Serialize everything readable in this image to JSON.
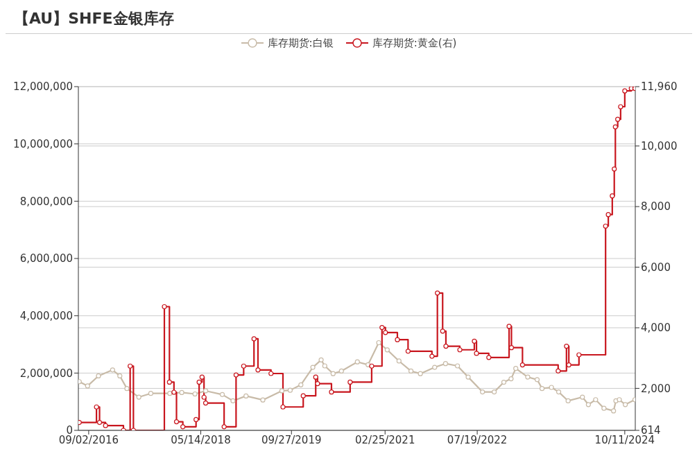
{
  "chart_data": {
    "type": "line",
    "title": "【AU】SHFE金银库存",
    "xlim": [
      "2016-07-07",
      "2024-12-08"
    ],
    "xticks": [
      {
        "value": "2016-09-02",
        "label": "09/02/2016"
      },
      {
        "value": "2018-05-14",
        "label": "05/14/2018"
      },
      {
        "value": "2019-09-27",
        "label": "09/27/2019"
      },
      {
        "value": "2021-02-25",
        "label": "02/25/2021"
      },
      {
        "value": "2022-07-19",
        "label": "07/19/2022"
      },
      {
        "value": "2024-10-11",
        "label": "10/11/2024"
      }
    ],
    "ylim": [
      0,
      12000000
    ],
    "yticks": [
      0,
      {
        "value": 2000000,
        "label": "2,000,000"
      },
      {
        "value": 4000000,
        "label": "4,000,000"
      },
      {
        "value": 6000000,
        "label": "6,000,000"
      },
      {
        "value": 8000000,
        "label": "8,000,000"
      },
      {
        "value": 10000000,
        "label": "10,000,000"
      },
      {
        "value": 12000000,
        "label": "12,000,000"
      }
    ],
    "y2lim": [
      614,
      11960
    ],
    "y2ticks": [
      614,
      {
        "value": 2000,
        "label": "2,000"
      },
      {
        "value": 4000,
        "label": "4,000"
      },
      {
        "value": 6000,
        "label": "6,000"
      },
      {
        "value": 8000,
        "label": "8,000"
      },
      {
        "value": 10000,
        "label": "10,000"
      },
      {
        "value": 11960,
        "label": "11,960"
      }
    ],
    "grid": "y",
    "legend": "top",
    "marker": "circle",
    "series": [
      {
        "name": "库存期货:白银",
        "color": "#c8bba8",
        "type": "line",
        "x": [
          "2016-07-12",
          "2016-08-27",
          "2016-10-26",
          "2017-01-12",
          "2017-02-21",
          "2017-04-01",
          "2017-06-06",
          "2017-08-11",
          "2017-11-24",
          "2018-01-29",
          "2018-04-12",
          "2018-06-10",
          "2018-09-10",
          "2018-11-08",
          "2019-01-19",
          "2019-04-22",
          "2019-08-05",
          "2019-09-20",
          "2019-11-18",
          "2020-01-23",
          "2020-03-09",
          "2020-03-29",
          "2020-05-14",
          "2020-06-29",
          "2020-09-25",
          "2020-11-23",
          "2021-01-21",
          "2021-03-09",
          "2021-05-13",
          "2021-07-18",
          "2021-09-08",
          "2021-11-26",
          "2022-01-25",
          "2022-04-01",
          "2022-05-30",
          "2022-08-17",
          "2022-10-21",
          "2022-12-13",
          "2023-01-22",
          "2023-02-17",
          "2023-04-24",
          "2023-06-15",
          "2023-07-12",
          "2023-09-02",
          "2023-10-12",
          "2023-12-03",
          "2024-02-20",
          "2024-03-24",
          "2024-05-03",
          "2024-06-18",
          "2024-08-10",
          "2024-08-23",
          "2024-09-11",
          "2024-10-14",
          "2024-12-06"
        ],
        "values": [
          1700000,
          1550000,
          1900000,
          2110000,
          1900000,
          1460000,
          1160000,
          1290000,
          1290000,
          1320000,
          1270000,
          1380000,
          1250000,
          1030000,
          1200000,
          1060000,
          1380000,
          1400000,
          1590000,
          2200000,
          2460000,
          2250000,
          1980000,
          2070000,
          2390000,
          2290000,
          3060000,
          2810000,
          2420000,
          2070000,
          1980000,
          2200000,
          2330000,
          2250000,
          1860000,
          1340000,
          1340000,
          1680000,
          1800000,
          2160000,
          1860000,
          1770000,
          1460000,
          1500000,
          1340000,
          1030000,
          1160000,
          900000,
          1070000,
          770000,
          680000,
          1030000,
          1070000,
          900000,
          1070000
        ]
      },
      {
        "name": "库存期货:黄金(右)",
        "color": "#c8161e",
        "type": "step",
        "axis": "y2",
        "x": [
          "2016-07-12",
          "2016-10-15",
          "2016-11-01",
          "2016-12-04",
          "2017-03-13",
          "2017-04-19",
          "2017-05-07",
          "2017-10-25",
          "2017-11-22",
          "2017-12-17",
          "2017-12-31",
          "2018-02-04",
          "2018-04-18",
          "2018-05-05",
          "2018-05-21",
          "2018-06-01",
          "2018-06-10",
          "2018-09-20",
          "2018-11-25",
          "2019-01-06",
          "2019-03-04",
          "2019-03-26",
          "2019-06-06",
          "2019-08-11",
          "2019-12-01",
          "2020-02-08",
          "2020-02-18",
          "2020-05-05",
          "2020-08-16",
          "2020-12-13",
          "2021-02-08",
          "2021-02-27",
          "2021-05-04",
          "2021-07-02",
          "2021-11-11",
          "2021-12-11",
          "2022-01-09",
          "2022-01-27",
          "2022-04-14",
          "2022-07-03",
          "2022-07-15",
          "2022-09-21",
          "2023-01-11",
          "2023-01-24",
          "2023-03-26",
          "2023-10-09",
          "2023-11-24",
          "2023-12-07",
          "2024-02-01",
          "2024-06-27",
          "2024-07-12",
          "2024-08-03",
          "2024-08-14",
          "2024-08-20",
          "2024-09-02",
          "2024-09-18",
          "2024-10-11",
          "2024-11-16",
          "2024-12-06"
        ],
        "values": [
          875,
          1386,
          875,
          770,
          614,
          2736,
          614,
          4697,
          2205,
          1872,
          899,
          733,
          970,
          2205,
          2371,
          1706,
          1516,
          733,
          2442,
          2736,
          3636,
          2608,
          2490,
          1386,
          1753,
          2371,
          2157,
          1880,
          2205,
          2736,
          4009,
          3843,
          3606,
          3225,
          3060,
          5148,
          3890,
          3392,
          3273,
          3558,
          3154,
          3021,
          4047,
          3344,
          2774,
          2573,
          3392,
          2774,
          3107,
          7356,
          7736,
          8353,
          9243,
          10632,
          10880,
          11297,
          11819,
          11900,
          11900
        ]
      }
    ]
  }
}
